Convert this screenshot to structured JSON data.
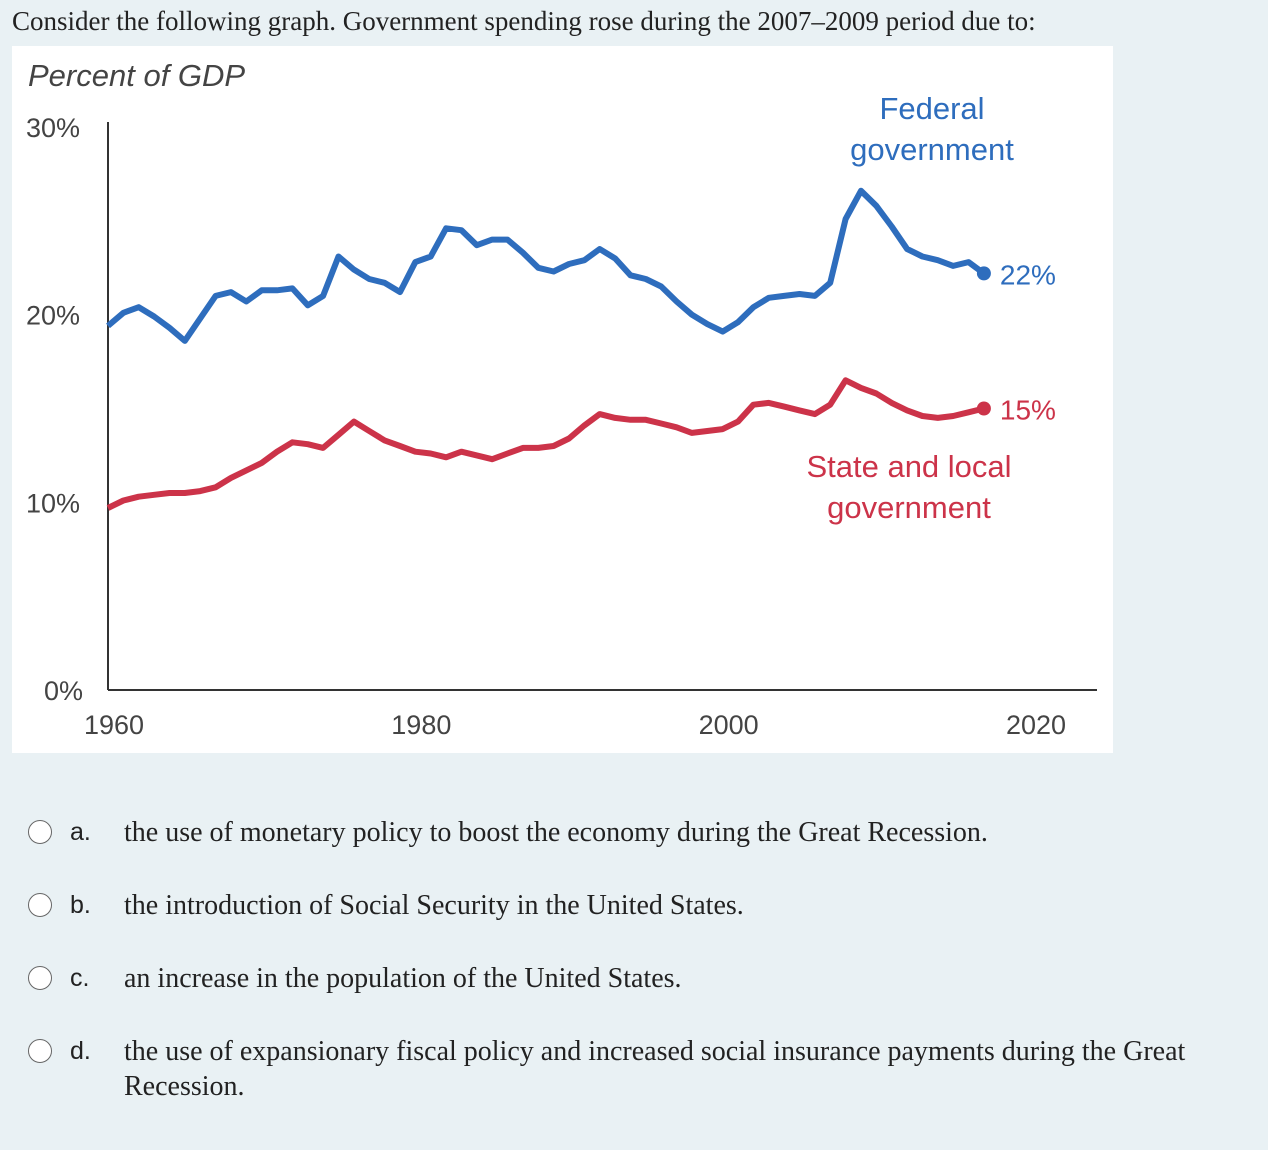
{
  "question": "Consider the following graph. Government spending rose during the 2007–2009 period due to:",
  "chart_data": {
    "type": "line",
    "ylabel": "Percent of GDP",
    "ylim": [
      0,
      30
    ],
    "yticks": [
      "0%",
      "10%",
      "20%",
      "30%"
    ],
    "xlim": [
      1960,
      2020
    ],
    "xticks": [
      "1960",
      "1980",
      "2000",
      "2020"
    ],
    "grid": false,
    "series": [
      {
        "name": "Federal government",
        "color": "#2e6dbd",
        "end_label": "22%",
        "x": [
          1960,
          1961,
          1962,
          1963,
          1964,
          1965,
          1966,
          1967,
          1968,
          1969,
          1970,
          1971,
          1972,
          1973,
          1974,
          1975,
          1976,
          1977,
          1978,
          1979,
          1980,
          1981,
          1982,
          1983,
          1984,
          1985,
          1986,
          1987,
          1988,
          1989,
          1990,
          1991,
          1992,
          1993,
          1994,
          1995,
          1996,
          1997,
          1998,
          1999,
          2000,
          2001,
          2002,
          2003,
          2004,
          2005,
          2006,
          2007,
          2008,
          2009,
          2010,
          2011,
          2012,
          2013,
          2014,
          2015,
          2016,
          2017
        ],
        "y": [
          19.4,
          20.1,
          20.4,
          19.9,
          19.3,
          18.6,
          19.8,
          21.0,
          21.2,
          20.7,
          21.3,
          21.3,
          21.4,
          20.5,
          21.0,
          23.1,
          22.4,
          21.9,
          21.7,
          21.2,
          22.8,
          23.1,
          24.6,
          24.5,
          23.7,
          24.0,
          24.0,
          23.3,
          22.5,
          22.3,
          22.7,
          22.9,
          23.5,
          23.0,
          22.1,
          21.9,
          21.5,
          20.7,
          20.0,
          19.5,
          19.1,
          19.6,
          20.4,
          20.9,
          21.0,
          21.1,
          21.0,
          21.7,
          25.1,
          26.6,
          25.8,
          24.7,
          23.5,
          23.1,
          22.9,
          22.6,
          22.8,
          22.2
        ]
      },
      {
        "name": "State and local government",
        "color": "#cc3349",
        "end_label": "15%",
        "x": [
          1960,
          1961,
          1962,
          1963,
          1964,
          1965,
          1966,
          1967,
          1968,
          1969,
          1970,
          1971,
          1972,
          1973,
          1974,
          1975,
          1976,
          1977,
          1978,
          1979,
          1980,
          1981,
          1982,
          1983,
          1984,
          1985,
          1986,
          1987,
          1988,
          1989,
          1990,
          1991,
          1992,
          1993,
          1994,
          1995,
          1996,
          1997,
          1998,
          1999,
          2000,
          2001,
          2002,
          2003,
          2004,
          2005,
          2006,
          2007,
          2008,
          2009,
          2010,
          2011,
          2012,
          2013,
          2014,
          2015,
          2016,
          2017
        ],
        "y": [
          9.7,
          10.1,
          10.3,
          10.4,
          10.5,
          10.5,
          10.6,
          10.8,
          11.3,
          11.7,
          12.1,
          12.7,
          13.2,
          13.1,
          12.9,
          13.6,
          14.3,
          13.8,
          13.3,
          13.0,
          12.7,
          12.6,
          12.4,
          12.7,
          12.5,
          12.3,
          12.6,
          12.9,
          12.9,
          13.0,
          13.4,
          14.1,
          14.7,
          14.5,
          14.4,
          14.4,
          14.2,
          14.0,
          13.7,
          13.8,
          13.9,
          14.3,
          15.2,
          15.3,
          15.1,
          14.9,
          14.7,
          15.2,
          16.5,
          16.1,
          15.8,
          15.3,
          14.9,
          14.6,
          14.5,
          14.6,
          14.8,
          15.0
        ]
      }
    ]
  },
  "options": [
    {
      "letter": "a.",
      "text": "the use of monetary policy to boost the economy during the Great Recession."
    },
    {
      "letter": "b.",
      "text": "the introduction of Social Security in the United States."
    },
    {
      "letter": "c.",
      "text": "an increase in the population of the United States."
    },
    {
      "letter": "d.",
      "text": "the use of expansionary fiscal policy and increased social insurance payments during the Great Recession."
    }
  ]
}
